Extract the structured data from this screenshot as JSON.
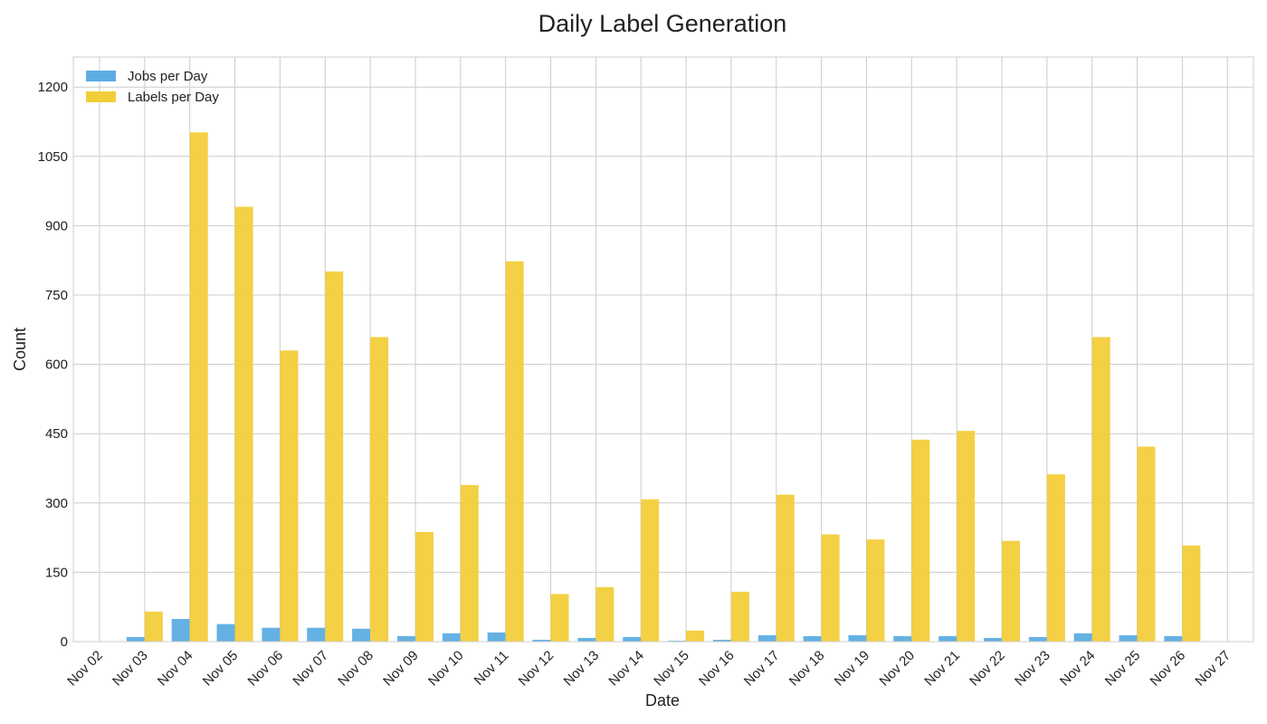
{
  "chart_data": {
    "type": "bar",
    "title": "Daily Label Generation",
    "xlabel": "Date",
    "ylabel": "Count",
    "ylim": [
      0,
      1265
    ],
    "yticks": [
      0,
      150,
      300,
      450,
      600,
      750,
      900,
      1050,
      1200
    ],
    "xtick_labels": [
      "Nov 02",
      "Nov 03",
      "Nov 04",
      "Nov 05",
      "Nov 06",
      "Nov 07",
      "Nov 08",
      "Nov 09",
      "Nov 10",
      "Nov 11",
      "Nov 12",
      "Nov 13",
      "Nov 14",
      "Nov 15",
      "Nov 16",
      "Nov 17",
      "Nov 18",
      "Nov 19",
      "Nov 20",
      "Nov 21",
      "Nov 22",
      "Nov 23",
      "Nov 24",
      "Nov 25",
      "Nov 26",
      "Nov 27"
    ],
    "categories": [
      "Nov 03",
      "Nov 04",
      "Nov 05",
      "Nov 06",
      "Nov 07",
      "Nov 08",
      "Nov 09",
      "Nov 10",
      "Nov 11",
      "Nov 12",
      "Nov 13",
      "Nov 14",
      "Nov 15",
      "Nov 16",
      "Nov 17",
      "Nov 18",
      "Nov 19",
      "Nov 20",
      "Nov 21",
      "Nov 22",
      "Nov 23",
      "Nov 24",
      "Nov 25",
      "Nov 26"
    ],
    "grid": true,
    "legend_position": "top-left",
    "series": [
      {
        "name": "Jobs per Day",
        "color": "#5DADE2",
        "values": [
          10,
          49,
          38,
          30,
          30,
          28,
          12,
          18,
          20,
          4,
          8,
          10,
          2,
          4,
          14,
          12,
          14,
          12,
          12,
          8,
          10,
          18,
          14,
          12
        ]
      },
      {
        "name": "Labels per Day",
        "color": "#F2CD3A",
        "values": [
          65,
          1102,
          941,
          630,
          801,
          659,
          237,
          339,
          823,
          103,
          118,
          308,
          24,
          108,
          318,
          232,
          221,
          437,
          456,
          218,
          362,
          659,
          422,
          208
        ]
      }
    ]
  }
}
